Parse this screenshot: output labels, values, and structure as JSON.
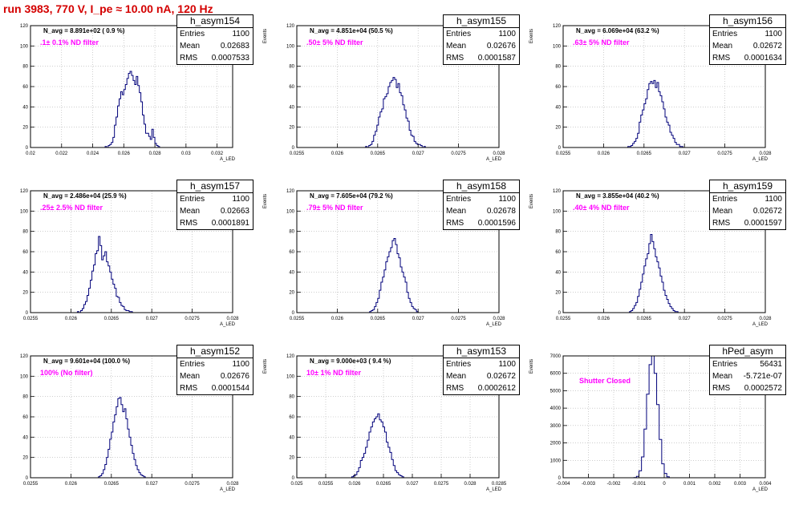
{
  "canvas_title": "run 3983,   770 V, I_pe ≈ 10.00 nA, 120 Hz",
  "colors": {
    "histogram": "#00007a",
    "title": "#d40000",
    "filter_text": "#ff00ff",
    "grid": "#b0b0b0"
  },
  "chart_data": [
    {
      "type": "bar",
      "name": "h_asym154",
      "xlabel": "A_LED",
      "ylabel": "Events",
      "xlim": [
        0.02,
        0.033
      ],
      "ylim": [
        0,
        120
      ],
      "xticks": [
        {
          "v": 0.02,
          "t": "0.02"
        },
        {
          "v": 0.022,
          "t": "0.022"
        },
        {
          "v": 0.024,
          "t": "0.024"
        },
        {
          "v": 0.026,
          "t": "0.026"
        },
        {
          "v": 0.028,
          "t": "0.028"
        },
        {
          "v": 0.03,
          "t": "0.03"
        },
        {
          "v": 0.032,
          "t": "0.032"
        }
      ],
      "yticks": [
        0,
        20,
        40,
        60,
        80,
        100,
        120
      ],
      "grid": true,
      "n_avg": "N_avg = 8.891e+02 ( 0.9 %)",
      "filter": ".1± 0.1% ND filter",
      "stats": {
        "entries": "1100",
        "mean": "0.02683",
        "rms": "0.0007533"
      },
      "hist": {
        "x0": 0.0248,
        "w": 0.0001,
        "values": [
          1,
          0,
          2,
          3,
          5,
          10,
          22,
          30,
          41,
          48,
          55,
          52,
          57,
          62,
          68,
          73,
          75,
          71,
          66,
          62,
          70,
          61,
          54,
          45,
          32,
          23,
          14,
          14,
          11,
          8,
          18,
          10,
          4,
          2,
          1
        ]
      }
    },
    {
      "type": "bar",
      "name": "h_asym155",
      "xlabel": "A_LED",
      "ylabel": "Events",
      "xlim": [
        0.0255,
        0.028
      ],
      "ylim": [
        0,
        120
      ],
      "xticks": [
        {
          "v": 0.0255,
          "t": "0.0255"
        },
        {
          "v": 0.026,
          "t": "0.026"
        },
        {
          "v": 0.0265,
          "t": "0.0265"
        },
        {
          "v": 0.027,
          "t": "0.027"
        },
        {
          "v": 0.0275,
          "t": "0.0275"
        },
        {
          "v": 0.028,
          "t": "0.028"
        }
      ],
      "yticks": [
        0,
        20,
        40,
        60,
        80,
        100,
        120
      ],
      "grid": true,
      "n_avg": "N_avg = 4.851e+04 (50.5 %)",
      "filter": ".50± 5% ND filter",
      "stats": {
        "entries": "1100",
        "mean": "0.02676",
        "rms": "0.0001587"
      },
      "hist": {
        "x0": 0.02635,
        "w": 2e-05,
        "values": [
          1,
          0,
          2,
          3,
          6,
          12,
          16,
          22,
          30,
          35,
          38,
          48,
          50,
          53,
          60,
          64,
          66,
          69,
          67,
          59,
          63,
          54,
          51,
          42,
          37,
          29,
          26,
          17,
          12,
          11,
          6,
          4,
          3,
          3,
          2,
          0,
          1
        ]
      }
    },
    {
      "type": "bar",
      "name": "h_asym156",
      "xlabel": "A_LED",
      "ylabel": "Events",
      "xlim": [
        0.0255,
        0.028
      ],
      "ylim": [
        0,
        120
      ],
      "xticks": [
        {
          "v": 0.0255,
          "t": "0.0255"
        },
        {
          "v": 0.026,
          "t": "0.026"
        },
        {
          "v": 0.0265,
          "t": "0.0265"
        },
        {
          "v": 0.027,
          "t": "0.027"
        },
        {
          "v": 0.0275,
          "t": "0.0275"
        },
        {
          "v": 0.028,
          "t": "0.028"
        }
      ],
      "yticks": [
        0,
        20,
        40,
        60,
        80,
        100,
        120
      ],
      "grid": true,
      "n_avg": "N_avg = 6.069e+04 (63.2 %)",
      "filter": ".63± 5% ND filter",
      "stats": {
        "entries": "1100",
        "mean": "0.02672",
        "rms": "0.0001634"
      },
      "hist": {
        "x0": 0.0263,
        "w": 2e-05,
        "values": [
          1,
          1,
          2,
          4,
          6,
          9,
          14,
          25,
          32,
          37,
          43,
          48,
          57,
          63,
          65,
          63,
          66,
          59,
          64,
          55,
          51,
          45,
          38,
          30,
          25,
          22,
          15,
          12,
          9,
          5,
          3,
          3,
          1,
          1
        ]
      }
    },
    {
      "type": "bar",
      "name": "h_asym157",
      "xlabel": "A_LED",
      "ylabel": "Events",
      "xlim": [
        0.0255,
        0.028
      ],
      "ylim": [
        0,
        120
      ],
      "xticks": [
        {
          "v": 0.0255,
          "t": "0.0255"
        },
        {
          "v": 0.026,
          "t": "0.026"
        },
        {
          "v": 0.0265,
          "t": "0.0265"
        },
        {
          "v": 0.027,
          "t": "0.027"
        },
        {
          "v": 0.0275,
          "t": "0.0275"
        },
        {
          "v": 0.028,
          "t": "0.028"
        }
      ],
      "yticks": [
        0,
        20,
        40,
        60,
        80,
        100,
        120
      ],
      "grid": true,
      "n_avg": "N_avg = 2.486e+04 (25.9 %)",
      "filter": ".25± 2.5% ND filter",
      "stats": {
        "entries": "1100",
        "mean": "0.02663",
        "rms": "0.0001891"
      },
      "hist": {
        "x0": 0.02608,
        "w": 2e-05,
        "values": [
          1,
          0,
          2,
          4,
          8,
          11,
          17,
          24,
          32,
          41,
          47,
          58,
          61,
          75,
          66,
          52,
          56,
          60,
          50,
          46,
          40,
          33,
          28,
          24,
          16,
          15,
          10,
          7,
          6,
          3,
          2,
          2,
          1,
          1
        ]
      }
    },
    {
      "type": "bar",
      "name": "h_asym158",
      "xlabel": "A_LED",
      "ylabel": "Events",
      "xlim": [
        0.0255,
        0.028
      ],
      "ylim": [
        0,
        120
      ],
      "xticks": [
        {
          "v": 0.0255,
          "t": "0.0255"
        },
        {
          "v": 0.026,
          "t": "0.026"
        },
        {
          "v": 0.0265,
          "t": "0.0265"
        },
        {
          "v": 0.027,
          "t": "0.027"
        },
        {
          "v": 0.0275,
          "t": "0.0275"
        },
        {
          "v": 0.028,
          "t": "0.028"
        }
      ],
      "yticks": [
        0,
        20,
        40,
        60,
        80,
        100,
        120
      ],
      "grid": true,
      "n_avg": "N_avg = 7.605e+04 (79.2 %)",
      "filter": ".79± 5% ND filter",
      "stats": {
        "entries": "1100",
        "mean": "0.02678",
        "rms": "0.0001596"
      },
      "hist": {
        "x0": 0.0264,
        "w": 2e-05,
        "values": [
          1,
          2,
          3,
          6,
          10,
          14,
          22,
          30,
          35,
          42,
          50,
          55,
          60,
          64,
          71,
          73,
          67,
          58,
          54,
          45,
          40,
          35,
          30,
          20,
          14,
          10,
          6,
          4,
          3,
          1
        ]
      }
    },
    {
      "type": "bar",
      "name": "h_asym159",
      "xlabel": "A_LED",
      "ylabel": "Events",
      "xlim": [
        0.0255,
        0.028
      ],
      "ylim": [
        0,
        120
      ],
      "xticks": [
        {
          "v": 0.0255,
          "t": "0.0255"
        },
        {
          "v": 0.026,
          "t": "0.026"
        },
        {
          "v": 0.0265,
          "t": "0.0265"
        },
        {
          "v": 0.027,
          "t": "0.027"
        },
        {
          "v": 0.0275,
          "t": "0.0275"
        },
        {
          "v": 0.028,
          "t": "0.028"
        }
      ],
      "yticks": [
        0,
        20,
        40,
        60,
        80,
        100,
        120
      ],
      "grid": true,
      "n_avg": "N_avg = 3.855e+04 (40.2 %)",
      "filter": ".40± 4% ND filter",
      "stats": {
        "entries": "1100",
        "mean": "0.02672",
        "rms": "0.0001597"
      },
      "hist": {
        "x0": 0.02632,
        "w": 2e-05,
        "values": [
          1,
          2,
          4,
          7,
          10,
          16,
          23,
          30,
          38,
          46,
          53,
          58,
          68,
          77,
          70,
          63,
          55,
          50,
          44,
          36,
          30,
          22,
          17,
          13,
          9,
          6,
          4,
          2,
          1,
          1
        ]
      }
    },
    {
      "type": "bar",
      "name": "h_asym152",
      "xlabel": "A_LED",
      "ylabel": "Events",
      "xlim": [
        0.0255,
        0.028
      ],
      "ylim": [
        0,
        120
      ],
      "xticks": [
        {
          "v": 0.0255,
          "t": "0.0255"
        },
        {
          "v": 0.026,
          "t": "0.026"
        },
        {
          "v": 0.0265,
          "t": "0.0265"
        },
        {
          "v": 0.027,
          "t": "0.027"
        },
        {
          "v": 0.0275,
          "t": "0.0275"
        },
        {
          "v": 0.028,
          "t": "0.028"
        }
      ],
      "yticks": [
        0,
        20,
        40,
        60,
        80,
        100,
        120
      ],
      "grid": true,
      "n_avg": "N_avg = 9.601e+04 (100.0 %)",
      "filter": "100% (No filter)",
      "stats": {
        "entries": "1100",
        "mean": "0.02676",
        "rms": "0.0001544"
      },
      "hist": {
        "x0": 0.02634,
        "w": 2e-05,
        "values": [
          1,
          2,
          4,
          8,
          13,
          20,
          28,
          38,
          45,
          55,
          62,
          70,
          78,
          79,
          72,
          65,
          68,
          58,
          48,
          40,
          32,
          24,
          18,
          12,
          8,
          5,
          3,
          2,
          1
        ]
      }
    },
    {
      "type": "bar",
      "name": "h_asym153",
      "xlabel": "A_LED",
      "ylabel": "Events",
      "xlim": [
        0.025,
        0.0285
      ],
      "ylim": [
        0,
        120
      ],
      "xticks": [
        {
          "v": 0.025,
          "t": "0.025"
        },
        {
          "v": 0.0255,
          "t": "0.0255"
        },
        {
          "v": 0.026,
          "t": "0.026"
        },
        {
          "v": 0.0265,
          "t": "0.0265"
        },
        {
          "v": 0.027,
          "t": "0.027"
        },
        {
          "v": 0.0275,
          "t": "0.0275"
        },
        {
          "v": 0.028,
          "t": "0.028"
        },
        {
          "v": 0.0285,
          "t": "0.0285"
        }
      ],
      "yticks": [
        0,
        20,
        40,
        60,
        80,
        100,
        120
      ],
      "grid": true,
      "n_avg": "N_avg = 9.000e+03 ( 9.4 %)",
      "filter": "10± 1% ND filter",
      "stats": {
        "entries": "1100",
        "mean": "0.02672",
        "rms": "0.0002612"
      },
      "hist": {
        "x0": 0.02595,
        "w": 3e-05,
        "values": [
          1,
          2,
          3,
          6,
          10,
          17,
          20,
          24,
          30,
          37,
          45,
          50,
          55,
          58,
          60,
          63,
          57,
          55,
          50,
          45,
          35,
          30,
          25,
          18,
          12,
          7,
          5,
          3,
          2,
          1
        ]
      }
    },
    {
      "type": "bar",
      "name": "hPed_asym",
      "xlabel": "A_LED",
      "ylabel": "Events",
      "xlim": [
        -0.004,
        0.004
      ],
      "ylim": [
        0,
        7000
      ],
      "xticks": [
        {
          "v": -0.004,
          "t": "-0.004"
        },
        {
          "v": -0.003,
          "t": "-0.003"
        },
        {
          "v": -0.002,
          "t": "-0.002"
        },
        {
          "v": -0.001,
          "t": "-0.001"
        },
        {
          "v": 0,
          "t": "0"
        },
        {
          "v": 0.001,
          "t": "0.001"
        },
        {
          "v": 0.002,
          "t": "0.002"
        },
        {
          "v": 0.003,
          "t": "0.003"
        },
        {
          "v": 0.004,
          "t": "0.004"
        }
      ],
      "yticks": [
        0,
        1000,
        2000,
        3000,
        4000,
        5000,
        6000,
        7000
      ],
      "grid": true,
      "n_avg": "",
      "filter": "Shutter Closed",
      "stats": {
        "entries": "56431",
        "mean": "-5.721e-07",
        "rms": "0.0002572"
      },
      "hist": {
        "x0": -0.0012,
        "w": 0.0001,
        "values": [
          10,
          80,
          400,
          1200,
          2800,
          4800,
          6500,
          7000,
          6000,
          4200,
          2200,
          800,
          250,
          60
        ]
      }
    }
  ]
}
